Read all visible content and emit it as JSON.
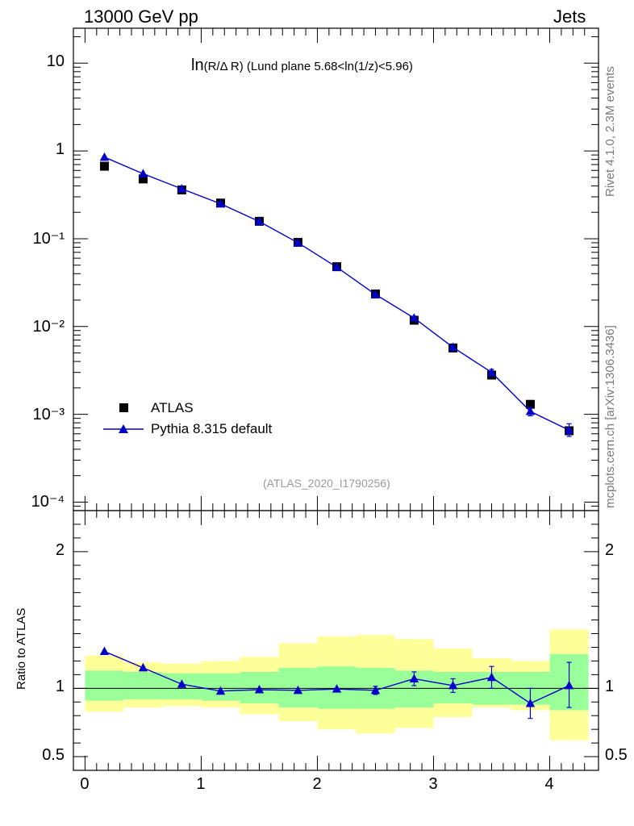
{
  "header": {
    "left": "13000 GeV pp",
    "right": "Jets"
  },
  "side_labels": {
    "rivet": "Rivet 4.1.0,  2.3M events",
    "mcplots": "mcplots.cern.ch [arXiv:1306.3436]"
  },
  "legend": {
    "data_label": "ATLAS",
    "mc_label": "Pythia 8.315 default"
  },
  "analysis_id": "(ATLAS_2020_I1790256)",
  "colors": {
    "data": "#000000",
    "mc": "#0000cc",
    "band_inner": "#99ff99",
    "band_outer": "#ffff99"
  },
  "chart_data": [
    {
      "type": "scatter",
      "panel": "main",
      "title": "ln(R/Δ R) (Lund plane 5.68<ln(1/z)<5.96)",
      "title_parts": {
        "main": "ln",
        "sub": "(R/Δ R)",
        "rest": " (Lund plane 5.68<ln(1/z)<5.96)"
      },
      "yscale": "log",
      "ylim": [
        8e-05,
        25
      ],
      "xlim": [
        -0.1,
        4.42
      ],
      "ytick_labels": [
        "10",
        "1",
        "10⁻¹",
        "10⁻²",
        "10⁻³",
        "10⁻⁴"
      ],
      "series": [
        {
          "name": "ATLAS",
          "marker": "square",
          "x": [
            0.167,
            0.5,
            0.833,
            1.167,
            1.5,
            1.833,
            2.167,
            2.5,
            2.833,
            3.167,
            3.5,
            3.833,
            4.167
          ],
          "values": [
            0.67,
            0.48,
            0.36,
            0.255,
            0.158,
            0.091,
            0.048,
            0.0235,
            0.0118,
            0.0057,
            0.0028,
            0.0013,
            0.00065
          ]
        },
        {
          "name": "Pythia 8.315 default",
          "marker": "triangle",
          "x": [
            0.167,
            0.5,
            0.833,
            1.167,
            1.5,
            1.833,
            2.167,
            2.5,
            2.833,
            3.167,
            3.5,
            3.833,
            4.167
          ],
          "values": [
            0.85,
            0.55,
            0.37,
            0.25,
            0.157,
            0.09,
            0.0475,
            0.0232,
            0.0125,
            0.0058,
            0.003,
            0.00108,
            0.00066
          ],
          "err_low": [
            0,
            0,
            0,
            0,
            0,
            0,
            0,
            0,
            0.0006,
            0.0002,
            0.00025,
            0.00012,
            0.0001
          ],
          "err_high": [
            0,
            0,
            0,
            0,
            0,
            0,
            0,
            0,
            0.0006,
            0.0002,
            0.00025,
            0.00012,
            0.00012
          ]
        }
      ]
    },
    {
      "type": "line",
      "panel": "ratio",
      "ylabel": "Ratio to ATLAS",
      "xlabel": "",
      "ylim": [
        0.4,
        2.3
      ],
      "xlim": [
        -0.1,
        4.42
      ],
      "yticks": [
        0.5,
        1,
        2
      ],
      "ytick_labels": [
        "0.5",
        "1",
        "2"
      ],
      "xticks": [
        0,
        1,
        2,
        3,
        4
      ],
      "xtick_labels": [
        "0",
        "1",
        "2",
        "3",
        "4"
      ],
      "bins": [
        [
          0,
          0.333
        ],
        [
          0.333,
          0.667
        ],
        [
          0.667,
          1.0
        ],
        [
          1.0,
          1.333
        ],
        [
          1.333,
          1.667
        ],
        [
          1.667,
          2.0
        ],
        [
          2.0,
          2.333
        ],
        [
          2.333,
          2.667
        ],
        [
          2.667,
          3.0
        ],
        [
          3.0,
          3.333
        ],
        [
          3.333,
          3.667
        ],
        [
          3.667,
          4.0
        ],
        [
          4.0,
          4.333
        ]
      ],
      "band_inner": [
        [
          0.91,
          1.13
        ],
        [
          0.92,
          1.12
        ],
        [
          0.92,
          1.11
        ],
        [
          0.91,
          1.11
        ],
        [
          0.89,
          1.12
        ],
        [
          0.86,
          1.15
        ],
        [
          0.85,
          1.16
        ],
        [
          0.85,
          1.15
        ],
        [
          0.86,
          1.13
        ],
        [
          0.89,
          1.12
        ],
        [
          0.88,
          1.12
        ],
        [
          0.88,
          1.12
        ],
        [
          0.84,
          1.25
        ]
      ],
      "band_outer": [
        [
          0.83,
          1.24
        ],
        [
          0.86,
          1.19
        ],
        [
          0.87,
          1.18
        ],
        [
          0.86,
          1.2
        ],
        [
          0.81,
          1.23
        ],
        [
          0.76,
          1.33
        ],
        [
          0.7,
          1.38
        ],
        [
          0.67,
          1.39
        ],
        [
          0.71,
          1.36
        ],
        [
          0.79,
          1.29
        ],
        [
          0.86,
          1.22
        ],
        [
          0.84,
          1.2
        ],
        [
          0.62,
          1.43
        ]
      ],
      "series": [
        {
          "name": "Pythia 8.315 default / ATLAS",
          "x": [
            0.167,
            0.5,
            0.833,
            1.167,
            1.5,
            1.833,
            2.167,
            2.5,
            2.833,
            3.167,
            3.5,
            3.833,
            4.167
          ],
          "values": [
            1.27,
            1.15,
            1.03,
            0.98,
            0.99,
            0.985,
            0.995,
            0.985,
            1.07,
            1.02,
            1.08,
            0.89,
            1.02
          ],
          "err_low": [
            0,
            0,
            0,
            0,
            0,
            0,
            0,
            0.03,
            0.05,
            0.05,
            0.08,
            0.11,
            0.16
          ],
          "err_high": [
            0,
            0,
            0,
            0,
            0,
            0,
            0,
            0.03,
            0.05,
            0.05,
            0.08,
            0.11,
            0.17
          ]
        }
      ]
    }
  ]
}
